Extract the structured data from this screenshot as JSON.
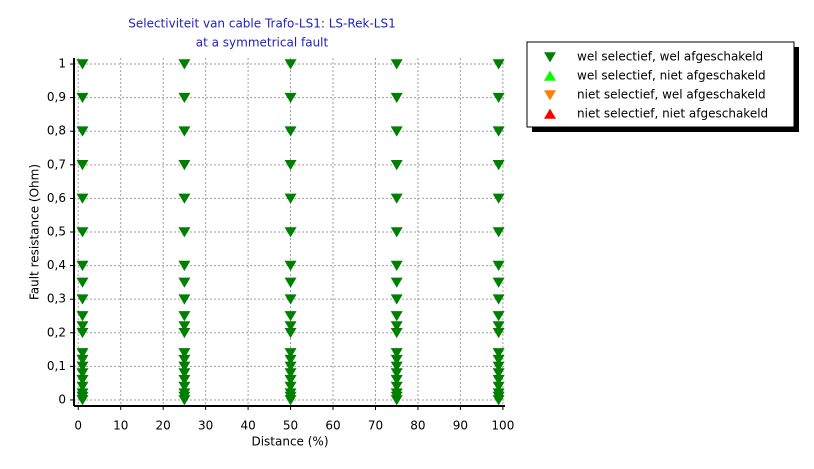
{
  "chart_data": {
    "type": "scatter",
    "title": "Selectiviteit van cable Trafo-LS1: LS-Rek-LS1",
    "subtitle": "at a symmetrical fault",
    "x_label": "Distance (%)",
    "y_label": "Fault resistance (Ohm)",
    "xlim": [
      -1,
      100.5
    ],
    "ylim": [
      -0.018,
      1.018
    ],
    "xticks": [
      0,
      10,
      20,
      30,
      40,
      50,
      60,
      70,
      80,
      90,
      100
    ],
    "yticks": [
      0,
      {
        "value": 0.1,
        "label": "0,1"
      },
      {
        "value": 0.2,
        "label": "0,2"
      },
      {
        "value": 0.3,
        "label": "0,3"
      },
      {
        "value": 0.4,
        "label": "0,4"
      },
      {
        "value": 0.5,
        "label": "0,5"
      },
      {
        "value": 0.6,
        "label": "0,6"
      },
      {
        "value": 0.7,
        "label": "0,7"
      },
      {
        "value": 0.8,
        "label": "0,8"
      },
      {
        "value": 0.9,
        "label": "0,9"
      },
      1
    ],
    "grid": true,
    "legend": "outside-right",
    "series": [
      {
        "name": "wel selectief, wel afgeschakeld",
        "color": "#008000",
        "marker": "triangle-down",
        "x": [
          1,
          1,
          1,
          1,
          1,
          1,
          1,
          1,
          1,
          1,
          1,
          1,
          1,
          1,
          1,
          1,
          1,
          1,
          1,
          1,
          1,
          25,
          25,
          25,
          25,
          25,
          25,
          25,
          25,
          25,
          25,
          25,
          25,
          25,
          25,
          25,
          25,
          25,
          25,
          25,
          25,
          25,
          50,
          50,
          50,
          50,
          50,
          50,
          50,
          50,
          50,
          50,
          50,
          50,
          50,
          50,
          50,
          50,
          50,
          50,
          50,
          50,
          50,
          75,
          75,
          75,
          75,
          75,
          75,
          75,
          75,
          75,
          75,
          75,
          75,
          75,
          75,
          75,
          75,
          75,
          75,
          75,
          75,
          75,
          99,
          99,
          99,
          99,
          99,
          99,
          99,
          99,
          99,
          99,
          99,
          99,
          99,
          99,
          99,
          99,
          99,
          99,
          99,
          99,
          99
        ],
        "values": [
          0,
          0.02,
          0.04,
          0.06,
          0.08,
          0.1,
          0.12,
          0.14,
          0.2,
          0.22,
          0.25,
          0.3,
          0.35,
          0.4,
          0.5,
          0.6,
          0.7,
          0.8,
          0.9,
          1,
          0.01,
          0,
          0.02,
          0.04,
          0.06,
          0.08,
          0.1,
          0.12,
          0.14,
          0.2,
          0.22,
          0.25,
          0.3,
          0.35,
          0.4,
          0.5,
          0.6,
          0.7,
          0.8,
          0.9,
          1,
          0.01,
          0,
          0.02,
          0.04,
          0.06,
          0.08,
          0.1,
          0.12,
          0.14,
          0.2,
          0.22,
          0.25,
          0.3,
          0.35,
          0.4,
          0.5,
          0.6,
          0.7,
          0.8,
          0.9,
          1,
          0.01,
          0,
          0.02,
          0.04,
          0.06,
          0.08,
          0.1,
          0.12,
          0.14,
          0.2,
          0.22,
          0.25,
          0.3,
          0.35,
          0.4,
          0.5,
          0.6,
          0.7,
          0.8,
          0.9,
          1,
          0.01,
          0,
          0.02,
          0.04,
          0.06,
          0.08,
          0.1,
          0.12,
          0.14,
          0.2,
          0.22,
          0.25,
          0.3,
          0.35,
          0.4,
          0.5,
          0.6,
          0.7,
          0.8,
          0.9,
          1,
          0.01
        ]
      },
      {
        "name": "wel selectief, niet afgeschakeld",
        "color": "#00ff00",
        "marker": "triangle-up",
        "x": [],
        "values": []
      },
      {
        "name": "niet selectief, wel afgeschakeld",
        "color": "#ff8000",
        "marker": "triangle-down",
        "x": [],
        "values": []
      },
      {
        "name": "niet selectief, niet afgeschakeld",
        "color": "#ff0000",
        "marker": "triangle-up",
        "x": [],
        "values": []
      }
    ]
  }
}
